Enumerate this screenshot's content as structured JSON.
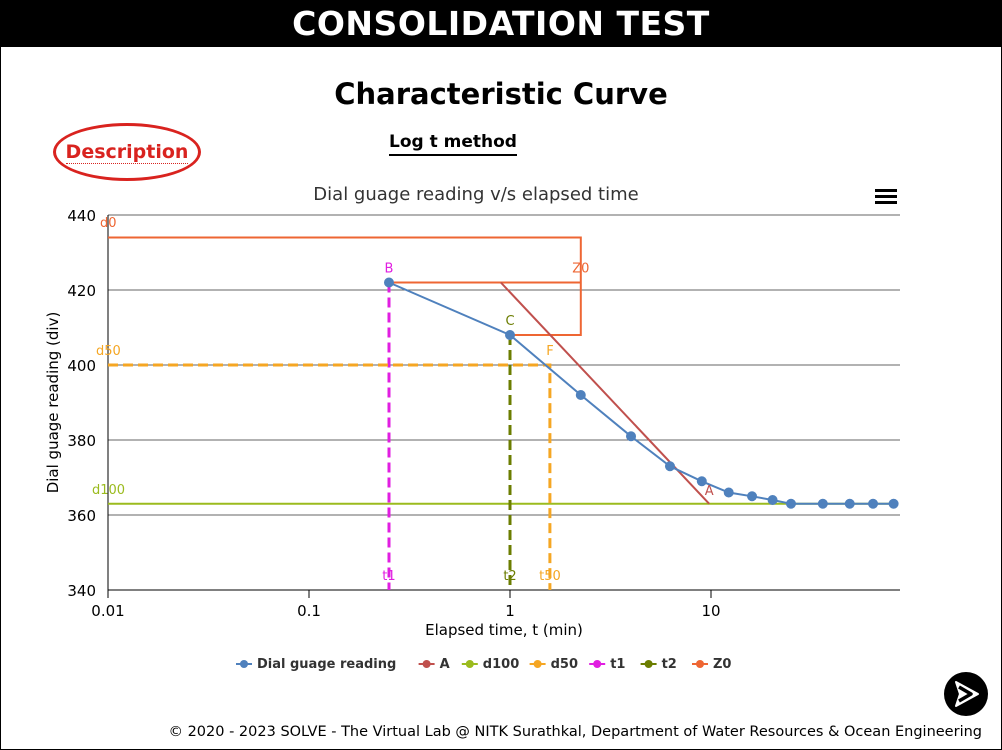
{
  "header": {
    "title": "CONSOLIDATION TEST"
  },
  "page": {
    "title": "Characteristic Curve",
    "method": "Log t method"
  },
  "description_button": {
    "label": "Description"
  },
  "footer": {
    "text": "© 2020 - 2023 SOLVE - The Virtual Lab @ NITK Surathkal, Department of Water Resources & Ocean Engineering"
  },
  "icons": {
    "menu": "hamburger-menu-icon",
    "next": "next-arrow-icon"
  },
  "chart_data": {
    "type": "line",
    "title": "Dial guage reading v/s elapsed time",
    "xlabel": "Elapsed time, t (min)",
    "ylabel": "Dial guage reading (div)",
    "x_scale": "log",
    "xlim": [
      0.01,
      80
    ],
    "ylim": [
      340,
      440
    ],
    "x_ticks": [
      0.01,
      0.1,
      1,
      10
    ],
    "x_tick_labels": [
      "0.01",
      "0.1",
      "1",
      "10"
    ],
    "y_ticks": [
      340,
      360,
      380,
      400,
      420,
      440
    ],
    "grid": true,
    "legend_position": "bottom",
    "series": [
      {
        "name": "Dial guage reading",
        "color": "#4f81bd",
        "style": "solid",
        "markers": true,
        "x": [
          0.25,
          1,
          2.25,
          4,
          6.25,
          9,
          12.25,
          16,
          20.25,
          25,
          36,
          49,
          64,
          81
        ],
        "y": [
          422,
          408,
          392,
          381,
          373,
          369,
          366,
          365,
          364,
          363,
          363,
          363,
          363,
          363
        ]
      },
      {
        "name": "A",
        "color": "#c0504d",
        "style": "solid",
        "x": [
          0.9,
          9.8
        ],
        "y": [
          422,
          363
        ]
      },
      {
        "name": "d100",
        "color": "#9bbb1e",
        "style": "solid",
        "x": [
          0.01,
          80
        ],
        "y": [
          363,
          363
        ]
      },
      {
        "name": "d50",
        "color": "#f5a623",
        "style": "dashed",
        "x": [
          0.01,
          1.58,
          1.58
        ],
        "y": [
          400,
          400,
          340
        ]
      },
      {
        "name": "t1",
        "color": "#e11ee1",
        "style": "dashed",
        "x": [
          0.25,
          0.25
        ],
        "y": [
          422,
          340
        ]
      },
      {
        "name": "t2",
        "color": "#6b7d00",
        "style": "dashed",
        "x": [
          1,
          1
        ],
        "y": [
          408,
          340
        ]
      },
      {
        "name": "Z0",
        "color": "#ee6633",
        "style": "solid",
        "x": [
          0.01,
          2.25,
          2.25,
          0.25,
          2.25,
          2.25,
          1
        ],
        "y": [
          434,
          434,
          422,
          422,
          422,
          408,
          408
        ]
      }
    ],
    "annotations": [
      {
        "text": "d0",
        "x": 0.01,
        "y": 434,
        "color": "#ee6633"
      },
      {
        "text": "B",
        "x": 0.25,
        "y": 422,
        "color": "#e11ee1"
      },
      {
        "text": "Z0",
        "x": 2.25,
        "y": 422,
        "color": "#ee6633"
      },
      {
        "text": "C",
        "x": 1,
        "y": 408,
        "color": "#6b7d00"
      },
      {
        "text": "d50",
        "x": 0.01,
        "y": 400,
        "color": "#f5a623"
      },
      {
        "text": "F",
        "x": 1.58,
        "y": 400,
        "color": "#f5a623"
      },
      {
        "text": "A",
        "x": 9.8,
        "y": 363,
        "color": "#c0504d"
      },
      {
        "text": "d100",
        "x": 0.01,
        "y": 363,
        "color": "#9bbb1e"
      },
      {
        "text": "t1",
        "x": 0.25,
        "y": 340,
        "color": "#e11ee1"
      },
      {
        "text": "t2",
        "x": 1,
        "y": 340,
        "color": "#6b7d00"
      },
      {
        "text": "t50",
        "x": 1.58,
        "y": 340,
        "color": "#f5a623"
      }
    ]
  }
}
